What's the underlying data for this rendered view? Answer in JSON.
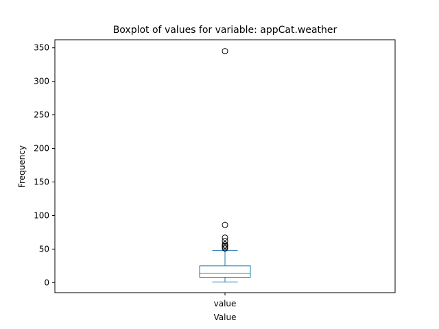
{
  "chart_data": {
    "type": "boxplot",
    "title": "Boxplot of values for variable: appCat.weather",
    "xlabel": "Value",
    "ylabel": "Frequency",
    "categories": [
      "value"
    ],
    "ylim": [
      -15,
      362
    ],
    "yticks": [
      0,
      50,
      100,
      150,
      200,
      250,
      300,
      350
    ],
    "grid": false,
    "box": {
      "whisker_low": 1,
      "q1": 8,
      "median": 14,
      "q3": 25,
      "whisker_high": 48
    },
    "outliers": [
      51,
      53,
      55,
      57,
      62,
      67,
      86,
      345
    ],
    "colors": {
      "box": "#1f77b4",
      "whisker": "#1f77b4",
      "median": "#2ca02c",
      "outlier": "#000000",
      "axes": "#000000"
    }
  }
}
